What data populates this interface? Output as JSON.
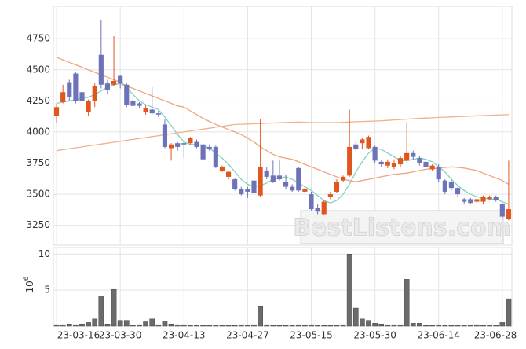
{
  "chart_data": {
    "type": "candlestick",
    "watermark": "BestListens.com",
    "categories": [
      "23-03-16",
      null,
      null,
      null,
      null,
      null,
      null,
      null,
      null,
      null,
      "23-03-30",
      null,
      null,
      null,
      null,
      null,
      null,
      null,
      null,
      null,
      "23-04-13",
      null,
      null,
      null,
      null,
      null,
      null,
      null,
      null,
      null,
      "23-04-27",
      null,
      null,
      null,
      null,
      null,
      null,
      null,
      null,
      null,
      "23-05-15",
      null,
      null,
      null,
      null,
      null,
      null,
      null,
      null,
      null,
      "23-05-30",
      null,
      null,
      null,
      null,
      null,
      null,
      null,
      null,
      null,
      "23-06-14",
      null,
      null,
      null,
      null,
      null,
      null,
      null,
      null,
      null,
      "23-06-28",
      null
    ],
    "open": [
      4130,
      4240,
      4400,
      4470,
      4320,
      4160,
      4250,
      4620,
      4390,
      4380,
      4450,
      4380,
      4250,
      4230,
      4160,
      4180,
      4150,
      4060,
      3870,
      3910,
      3910,
      3910,
      3920,
      3900,
      3880,
      3880,
      3690,
      3640,
      3620,
      3540,
      3540,
      3610,
      3490,
      3690,
      3650,
      3650,
      3600,
      3560,
      3710,
      3520,
      3500,
      3390,
      3340,
      3480,
      3520,
      3610,
      3650,
      3900,
      3910,
      3870,
      3880,
      3760,
      3730,
      3720,
      3740,
      3770,
      3830,
      3790,
      3760,
      3700,
      3720,
      3610,
      3600,
      3550,
      3460,
      3460,
      3440,
      3440,
      3460,
      3480,
      3420,
      3300
    ],
    "high": [
      4230,
      4380,
      4420,
      4480,
      4350,
      4260,
      4390,
      4900,
      4420,
      4770,
      4460,
      4390,
      4280,
      4240,
      4220,
      4360,
      4170,
      4100,
      3910,
      3920,
      3920,
      3960,
      3940,
      3910,
      3900,
      3890,
      3730,
      3690,
      3630,
      3560,
      3560,
      3620,
      4100,
      3720,
      3770,
      3780,
      3660,
      3580,
      3720,
      3570,
      3520,
      3420,
      3450,
      3520,
      3620,
      3650,
      4180,
      3920,
      3950,
      3970,
      3890,
      3770,
      3780,
      3780,
      3810,
      4080,
      3850,
      3810,
      3780,
      3740,
      3740,
      3620,
      3620,
      3560,
      3470,
      3470,
      3470,
      3490,
      3490,
      3490,
      3430,
      3770
    ],
    "low": [
      4070,
      4230,
      4250,
      4230,
      4220,
      4130,
      4200,
      4350,
      4300,
      4370,
      4350,
      4200,
      4200,
      4190,
      4140,
      4140,
      4120,
      3870,
      3770,
      3850,
      3790,
      3900,
      3870,
      3770,
      3850,
      3710,
      3680,
      3620,
      3530,
      3490,
      3470,
      3500,
      3480,
      3620,
      3590,
      3610,
      3540,
      3520,
      3520,
      3510,
      3370,
      3340,
      3330,
      3460,
      3510,
      3600,
      3640,
      3850,
      3860,
      3860,
      3750,
      3720,
      3710,
      3700,
      3720,
      3760,
      3780,
      3730,
      3700,
      3690,
      3600,
      3500,
      3530,
      3480,
      3420,
      3420,
      3420,
      3420,
      3450,
      3440,
      3310,
      3290
    ],
    "close": [
      4200,
      4320,
      4280,
      4250,
      4250,
      4250,
      4370,
      4380,
      4340,
      4410,
      4390,
      4220,
      4210,
      4210,
      4190,
      4150,
      4140,
      3880,
      3900,
      3880,
      3900,
      3950,
      3880,
      3780,
      3860,
      3720,
      3720,
      3680,
      3540,
      3500,
      3520,
      3510,
      3720,
      3640,
      3600,
      3620,
      3560,
      3530,
      3530,
      3540,
      3380,
      3360,
      3440,
      3500,
      3600,
      3640,
      3880,
      3860,
      3940,
      3960,
      3770,
      3740,
      3760,
      3750,
      3790,
      3830,
      3800,
      3750,
      3720,
      3730,
      3620,
      3520,
      3550,
      3500,
      3440,
      3430,
      3460,
      3480,
      3480,
      3450,
      3320,
      3380
    ],
    "volume": [
      0.2,
      0.2,
      0.3,
      0.2,
      0.3,
      0.5,
      1.0,
      4.2,
      0.3,
      5.1,
      0.8,
      0.8,
      0.1,
      0.2,
      0.6,
      1.0,
      0.2,
      0.7,
      0.3,
      0.2,
      0.2,
      0.1,
      0.1,
      0.1,
      0.1,
      0.1,
      0.1,
      0.1,
      0.1,
      0.2,
      0.1,
      0.2,
      2.8,
      0.2,
      0.1,
      0.1,
      0.1,
      0.1,
      0.2,
      0.1,
      0.2,
      0.1,
      0.1,
      0.1,
      0.1,
      0.2,
      10.0,
      2.5,
      1.0,
      0.8,
      0.4,
      0.3,
      0.2,
      0.2,
      0.2,
      6.5,
      0.4,
      0.4,
      0.1,
      0.1,
      0.2,
      0.1,
      0.1,
      0.1,
      0.1,
      0.1,
      0.2,
      0.1,
      0.1,
      0.1,
      0.5,
      3.8
    ],
    "up_color": "#e0561f",
    "down_color": "#6e72b8",
    "volume_color": "#6b6b6b",
    "moving_averages": [
      {
        "color": "#7fd3c2",
        "values": [
          4230,
          4240,
          4250,
          4260,
          4270,
          4280,
          4300,
          4330,
          4360,
          4380,
          4390,
          4360,
          4300,
          4250,
          4220,
          4200,
          4180,
          4120,
          4050,
          3980,
          3920,
          3900,
          3900,
          3890,
          3870,
          3830,
          3790,
          3740,
          3680,
          3620,
          3580,
          3560,
          3570,
          3590,
          3620,
          3630,
          3640,
          3620,
          3590,
          3560,
          3530,
          3490,
          3450,
          3430,
          3450,
          3500,
          3580,
          3680,
          3760,
          3830,
          3870,
          3860,
          3830,
          3800,
          3770,
          3770,
          3780,
          3790,
          3780,
          3760,
          3720,
          3680,
          3620,
          3570,
          3530,
          3500,
          3480,
          3470,
          3460,
          3460,
          3440,
          3420
        ]
      },
      {
        "color": "#eea482",
        "values": [
          4600,
          4580,
          4560,
          4540,
          4520,
          4500,
          4480,
          4460,
          4440,
          4420,
          4400,
          4370,
          4350,
          4330,
          4310,
          4290,
          4270,
          4250,
          4230,
          4210,
          4200,
          4170,
          4140,
          4110,
          4085,
          4060,
          4040,
          4020,
          4000,
          3980,
          3950,
          3920,
          3880,
          3850,
          3820,
          3800,
          3790,
          3780,
          3760,
          3740,
          3720,
          3700,
          3680,
          3660,
          3640,
          3620,
          3610,
          3600,
          3610,
          3620,
          3630,
          3640,
          3650,
          3660,
          3665,
          3670,
          3680,
          3690,
          3700,
          3705,
          3710,
          3715,
          3720,
          3715,
          3710,
          3700,
          3690,
          3670,
          3650,
          3630,
          3610,
          3580
        ]
      },
      {
        "color": "#eeb28e",
        "values": [
          3850,
          3858,
          3865,
          3873,
          3880,
          3888,
          3895,
          3903,
          3910,
          3918,
          3925,
          3933,
          3940,
          3948,
          3955,
          3963,
          3970,
          3978,
          3985,
          3993,
          4000,
          4008,
          4015,
          4023,
          4030,
          4038,
          4045,
          4053,
          4060,
          4062,
          4064,
          4066,
          4068,
          4070,
          4072,
          4074,
          4076,
          4078,
          4080,
          4078,
          4076,
          4075,
          4075,
          4075,
          4076,
          4078,
          4080,
          4082,
          4084,
          4086,
          4088,
          4090,
          4093,
          4097,
          4100,
          4103,
          4107,
          4110,
          4112,
          4114,
          4117,
          4119,
          4121,
          4123,
          4125,
          4128,
          4130,
          4132,
          4134,
          4136,
          4138,
          4140
        ]
      }
    ],
    "ylim": [
      3090,
      5010
    ],
    "yticks": [
      3250,
      3500,
      3750,
      4000,
      4250,
      4500,
      4750
    ],
    "y2lim": [
      0,
      10.9
    ],
    "y2ticks": [
      5,
      10
    ],
    "y2_label": {
      "base": "10",
      "exponent": "6"
    },
    "grid": true
  }
}
